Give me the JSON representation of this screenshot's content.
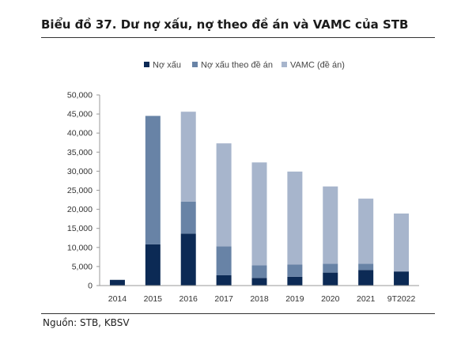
{
  "title": "Biểu đồ 37. Dư nợ xấu, nợ theo đề án và VAMC của STB",
  "source": "Nguồn: STB, KBSV",
  "colors": {
    "no_xau": "#0c2a55",
    "no_xau_de_an": "#6883a6",
    "vamc": "#a7b5cc",
    "axis": "#999999"
  },
  "chart_data": {
    "type": "bar",
    "stacked": true,
    "categories": [
      "2014",
      "2015",
      "2016",
      "2017",
      "2018",
      "2019",
      "2020",
      "2021",
      "9T2022"
    ],
    "series": [
      {
        "name": "Nợ xấu",
        "values": [
          1500,
          10800,
          13600,
          2700,
          2000,
          2300,
          3400,
          4100,
          3700
        ]
      },
      {
        "name": "Nợ xấu theo đề án",
        "values": [
          0,
          33700,
          8400,
          7600,
          3300,
          3200,
          2300,
          1600,
          0
        ]
      },
      {
        "name": "VAMC (đề án)",
        "values": [
          0,
          0,
          23600,
          27000,
          27000,
          24400,
          20300,
          17100,
          15200
        ]
      }
    ],
    "ylim": [
      0,
      50000
    ],
    "yticks": [
      "0",
      "5,000",
      "10,000",
      "15,000",
      "20,000",
      "25,000",
      "30,000",
      "35,000",
      "40,000",
      "45,000",
      "50,000"
    ],
    "legend_position": "top-center",
    "grid": false
  }
}
